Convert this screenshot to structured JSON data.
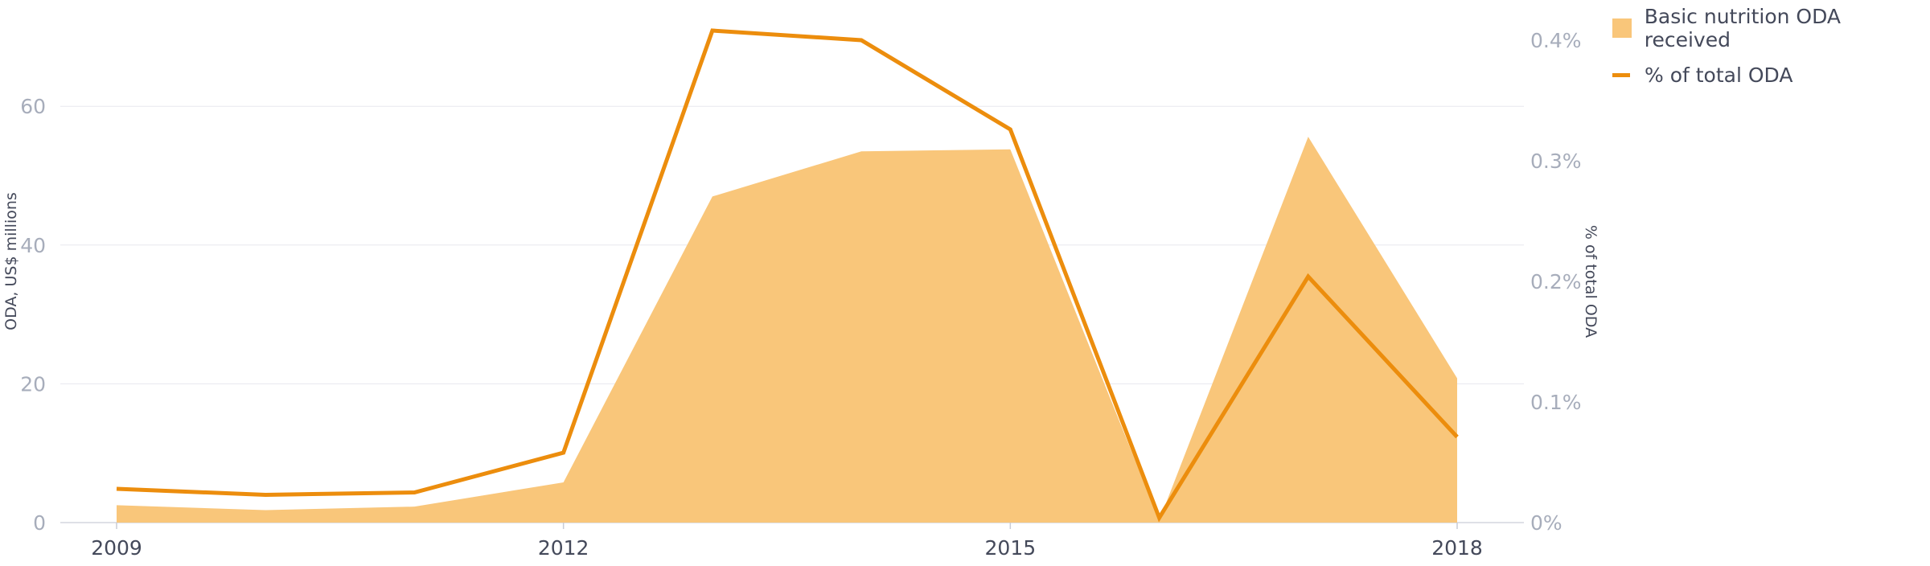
{
  "colors": {
    "area_fill": "#f9c67a",
    "line": "#ec8d0d",
    "grid": "#e8e8ee",
    "tick_text": "#a7adbb",
    "axis_title_text": "#44495a",
    "x_tick_text": "#44495a"
  },
  "legend": {
    "area_label": "Basic nutrition ODA received",
    "line_label": "% of total ODA",
    "position": "top-right"
  },
  "chart_data": {
    "type": "area",
    "x": [
      2009,
      2010,
      2011,
      2012,
      2013,
      2014,
      2015,
      2016,
      2017,
      2018
    ],
    "x_tick_labels": [
      "2009",
      "2012",
      "2015",
      "2018"
    ],
    "x_tick_values": [
      2009,
      2012,
      2015,
      2018
    ],
    "y_left": {
      "label": "ODA, US$ millions",
      "lim": [
        0,
        73
      ],
      "ticks": [
        0,
        20,
        40,
        60
      ],
      "tick_labels": [
        "0",
        "20",
        "40",
        "60"
      ]
    },
    "y_right": {
      "label": "% of total ODA",
      "lim": [
        0,
        0.42
      ],
      "ticks": [
        0,
        0.1,
        0.2,
        0.3,
        0.4
      ],
      "tick_labels": [
        "0%",
        "0.1%",
        "0.2%",
        "0.3%",
        "0.4%"
      ]
    },
    "grid": true,
    "series": [
      {
        "name": "Basic nutrition ODA received",
        "type": "area",
        "axis": "left",
        "values": [
          2.5,
          1.8,
          2.3,
          5.8,
          47.0,
          53.5,
          53.8,
          0.3,
          55.6,
          20.8
        ]
      },
      {
        "name": "% of total ODA",
        "type": "line",
        "axis": "right",
        "values": [
          0.028,
          0.023,
          0.025,
          0.058,
          0.408,
          0.4,
          0.326,
          0.004,
          0.204,
          0.071
        ]
      }
    ]
  }
}
